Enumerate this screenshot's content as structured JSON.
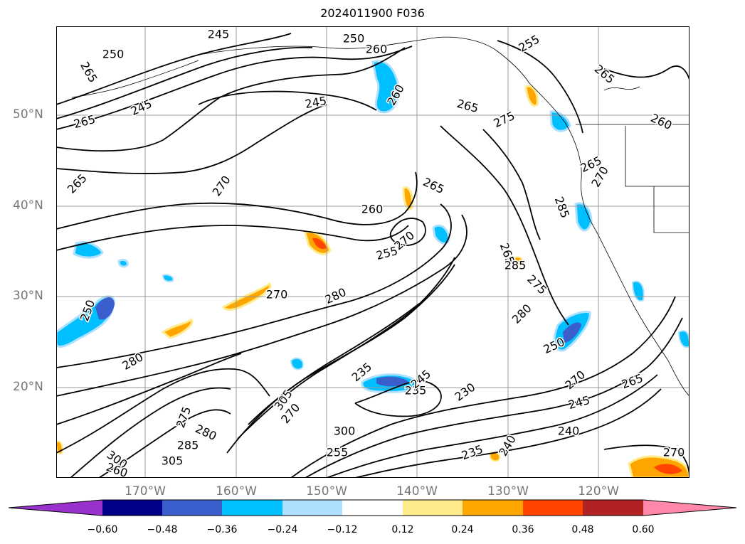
{
  "title": "2024011900 F036",
  "lat_ticks": [
    "50°N",
    "40°N",
    "30°N",
    "20°N"
  ],
  "lon_ticks": [
    "170°W",
    "160°W",
    "150°W",
    "140°W",
    "130°W",
    "120°W"
  ],
  "colorbar": {
    "tick_labels": [
      "−0.60",
      "−0.48",
      "−0.36",
      "−0.24",
      "−0.12",
      "0.12",
      "0.24",
      "0.36",
      "0.48",
      "0.60"
    ],
    "bins": [
      {
        "color": "#9932cc"
      },
      {
        "color": "#00008b"
      },
      {
        "color": "#3a5fcd"
      },
      {
        "color": "#00bfff"
      },
      {
        "color": "#addfff"
      },
      {
        "color": "#ffffff"
      },
      {
        "color": "#ffeb8a"
      },
      {
        "color": "#ffa500"
      },
      {
        "color": "#ff4500"
      },
      {
        "color": "#b22222"
      },
      {
        "color": "#ff88aa"
      }
    ]
  },
  "contour_labels": [
    "245",
    "250",
    "250",
    "260",
    "265",
    "245",
    "255",
    "265",
    "245",
    "260",
    "265",
    "265",
    "275",
    "260",
    "265",
    "270",
    "265",
    "270",
    "265",
    "260",
    "255",
    "270",
    "270",
    "280",
    "265",
    "285",
    "280",
    "275",
    "285",
    "250",
    "280",
    "250",
    "270",
    "235",
    "245",
    "305",
    "235",
    "230",
    "270",
    "300",
    "245",
    "240",
    "265",
    "275",
    "280",
    "285",
    "305",
    "300",
    "260",
    "255",
    "235",
    "240",
    "270"
  ]
}
